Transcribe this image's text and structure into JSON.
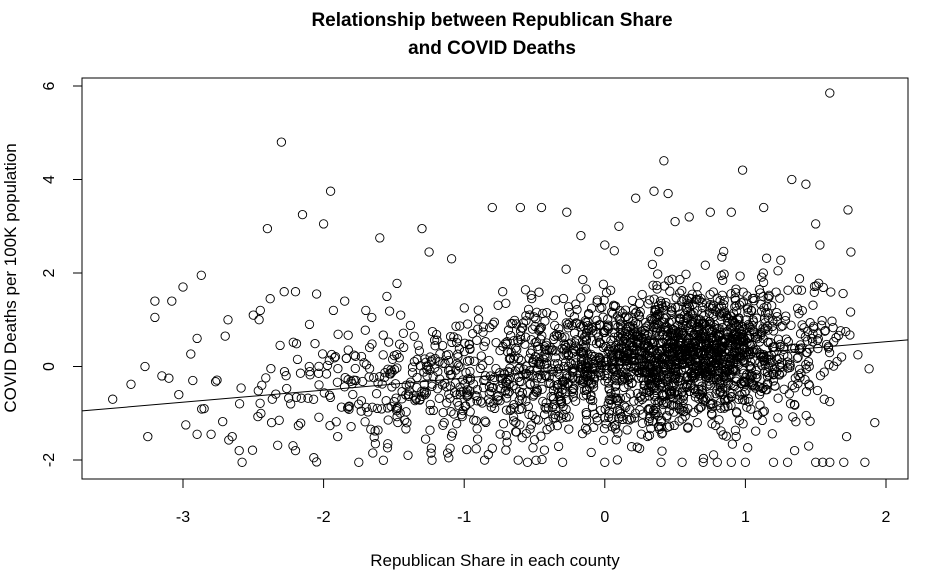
{
  "chart_data": {
    "type": "scatter",
    "title": [
      "Relationship between Republican Share",
      "and COVID Deaths"
    ],
    "xlabel": "Republican Share in each county",
    "ylabel": "COVID Deaths per 100K population",
    "xlim": [
      -3.7,
      2.2
    ],
    "ylim": [
      -2.4,
      6.2
    ],
    "x_ticks": [
      -3,
      -2,
      -1,
      0,
      1,
      2
    ],
    "y_ticks": [
      -2,
      0,
      2,
      4,
      6
    ],
    "grid": false,
    "legend": null,
    "fit_line": {
      "x": [
        -3.7,
        2.2
      ],
      "y": [
        -0.95,
        0.57
      ]
    },
    "points": [
      [
        -3.5,
        -0.7
      ],
      [
        -3.37,
        -0.38
      ],
      [
        -3.27,
        0.0
      ],
      [
        -3.25,
        -1.5
      ],
      [
        -3.2,
        1.4
      ],
      [
        -3.2,
        1.05
      ],
      [
        -3.15,
        -0.2
      ],
      [
        -3.1,
        -0.25
      ],
      [
        -3.08,
        1.4
      ],
      [
        -3.03,
        -0.6
      ],
      [
        -3.0,
        1.7
      ],
      [
        -2.98,
        -1.25
      ],
      [
        -2.93,
        -0.3
      ],
      [
        -2.9,
        0.6
      ],
      [
        -2.87,
        1.95
      ],
      [
        -2.9,
        -1.45
      ],
      [
        -2.85,
        -0.9
      ],
      [
        -2.8,
        -1.45
      ],
      [
        -2.7,
        0.65
      ],
      [
        -2.68,
        1.0
      ],
      [
        -2.65,
        -1.5
      ],
      [
        -2.6,
        -1.8
      ],
      [
        -2.58,
        -2.05
      ],
      [
        -2.5,
        1.1
      ],
      [
        -2.45,
        1.2
      ],
      [
        -2.4,
        2.95
      ],
      [
        -2.38,
        1.45
      ],
      [
        -2.3,
        4.8
      ],
      [
        -2.28,
        1.6
      ],
      [
        -2.2,
        1.6
      ],
      [
        -2.15,
        3.25
      ],
      [
        -2.1,
        0.9
      ],
      [
        -2.07,
        -1.95
      ],
      [
        -2.05,
        1.55
      ],
      [
        -2.0,
        3.05
      ],
      [
        -1.95,
        3.75
      ],
      [
        -1.93,
        1.2
      ],
      [
        -1.9,
        -1.5
      ],
      [
        -1.85,
        1.4
      ],
      [
        -1.75,
        -2.05
      ],
      [
        -1.7,
        1.2
      ],
      [
        -1.6,
        2.75
      ],
      [
        -1.55,
        1.5
      ],
      [
        -1.3,
        2.95
      ],
      [
        -1.25,
        2.45
      ],
      [
        -0.8,
        3.4
      ],
      [
        -0.6,
        3.4
      ],
      [
        -0.45,
        3.4
      ],
      [
        -0.27,
        3.3
      ],
      [
        -0.17,
        2.8
      ],
      [
        0.0,
        2.6
      ],
      [
        0.1,
        3.0
      ],
      [
        0.22,
        3.6
      ],
      [
        0.35,
        3.75
      ],
      [
        0.42,
        4.4
      ],
      [
        0.45,
        3.7
      ],
      [
        0.5,
        3.1
      ],
      [
        0.6,
        3.2
      ],
      [
        0.75,
        3.3
      ],
      [
        0.9,
        3.3
      ],
      [
        0.98,
        4.2
      ],
      [
        1.13,
        3.4
      ],
      [
        1.33,
        4.0
      ],
      [
        1.43,
        3.9
      ],
      [
        1.5,
        3.05
      ],
      [
        1.53,
        2.6
      ],
      [
        1.6,
        5.85
      ],
      [
        1.73,
        3.35
      ],
      [
        1.75,
        2.45
      ],
      [
        1.8,
        0.25
      ],
      [
        1.88,
        -0.05
      ],
      [
        1.92,
        -1.2
      ],
      [
        1.85,
        -2.05
      ],
      [
        1.72,
        -1.5
      ],
      [
        1.7,
        -2.05
      ],
      [
        1.6,
        -2.05
      ],
      [
        1.55,
        -2.05
      ],
      [
        1.5,
        -2.05
      ],
      [
        1.45,
        -1.7
      ],
      [
        1.35,
        -1.8
      ],
      [
        1.3,
        -2.05
      ],
      [
        1.2,
        -2.05
      ],
      [
        1.0,
        -2.05
      ],
      [
        0.9,
        -2.05
      ],
      [
        0.8,
        -2.05
      ],
      [
        0.7,
        -2.05
      ],
      [
        0.55,
        -2.05
      ],
      [
        0.4,
        -2.05
      ],
      [
        0.0,
        -2.05
      ],
      [
        -0.3,
        -2.05
      ],
      [
        -0.55,
        -2.05
      ],
      [
        -0.8,
        -1.75
      ],
      [
        -1.1,
        -1.75
      ],
      [
        -1.4,
        -1.9
      ],
      [
        -1.65,
        -1.85
      ],
      [
        -2.2,
        -1.8
      ]
    ],
    "point_cloud_note": "plus ~2400 additional dense points forming a cloud concentrated around x in [-2.5, 1.7], y in [-2, 2.5]"
  }
}
